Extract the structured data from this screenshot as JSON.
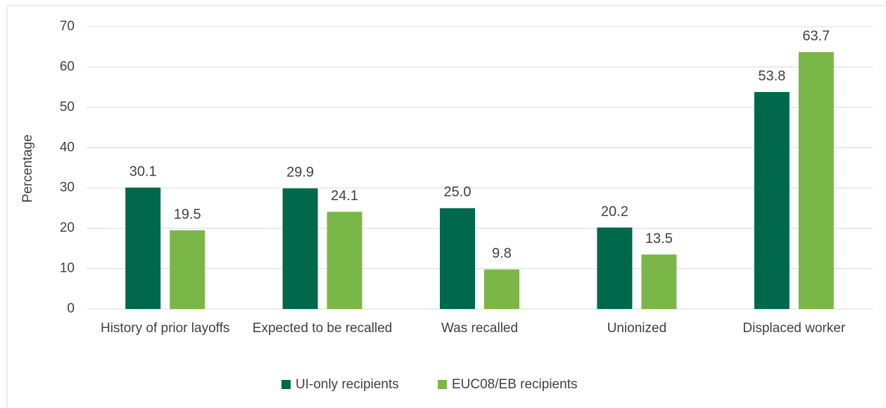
{
  "chart_data": {
    "type": "bar",
    "categories": [
      "History of prior layoffs",
      "Expected to be recalled",
      "Was recalled",
      "Unionized",
      "Displaced worker"
    ],
    "series": [
      {
        "name": "UI-only recipients",
        "color": "#00684b",
        "values": [
          30.1,
          29.9,
          25,
          20.2,
          53.8
        ],
        "value_labels": [
          "30.1",
          "29.9",
          "25.0",
          "20.2",
          "53.8"
        ]
      },
      {
        "name": "EUC08/EB recipients",
        "color": "#7ab648",
        "values": [
          19.5,
          24.1,
          9.8,
          13.5,
          63.7
        ],
        "value_labels": [
          "19.5",
          "24.1",
          "9.8",
          "13.5",
          "63.7"
        ]
      }
    ],
    "y_label": "Percentage",
    "ylim": [
      0,
      70
    ],
    "yticks": [
      0,
      10,
      20,
      30,
      40,
      50,
      60,
      70
    ],
    "grid": true,
    "legend": "bottom"
  }
}
